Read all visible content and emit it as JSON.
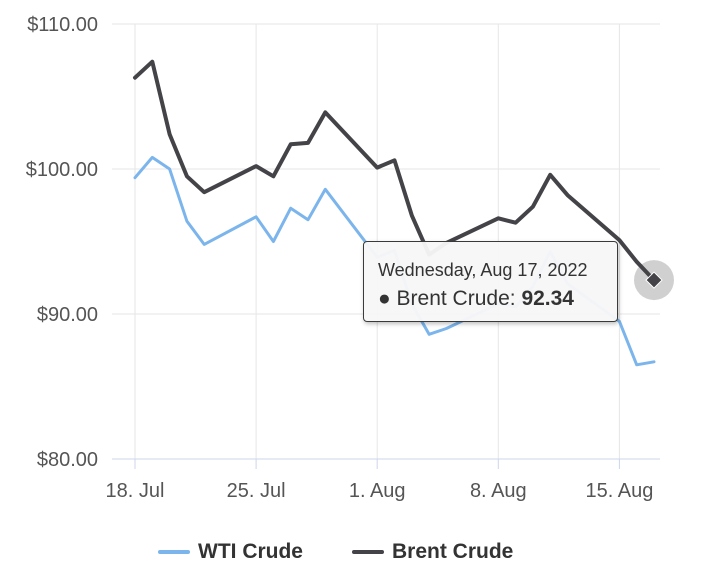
{
  "chart_data": {
    "type": "line",
    "x": [
      "2022-07-18",
      "2022-07-19",
      "2022-07-20",
      "2022-07-21",
      "2022-07-22",
      "2022-07-25",
      "2022-07-26",
      "2022-07-27",
      "2022-07-28",
      "2022-07-29",
      "2022-08-01",
      "2022-08-02",
      "2022-08-03",
      "2022-08-04",
      "2022-08-05",
      "2022-08-08",
      "2022-08-09",
      "2022-08-10",
      "2022-08-11",
      "2022-08-12",
      "2022-08-15",
      "2022-08-16",
      "2022-08-17"
    ],
    "series": [
      {
        "name": "WTI Crude",
        "color": "#7cb5ec",
        "values": [
          99.4,
          100.8,
          100.0,
          96.4,
          94.8,
          96.7,
          95.0,
          97.3,
          96.5,
          98.6,
          93.9,
          94.4,
          90.7,
          88.6,
          89.0,
          90.7,
          90.5,
          91.9,
          94.3,
          92.1,
          89.5,
          86.5,
          86.7
        ]
      },
      {
        "name": "Brent Crude",
        "color": "#434348",
        "values": [
          106.3,
          107.4,
          102.4,
          99.5,
          98.4,
          100.2,
          99.5,
          101.7,
          101.8,
          103.9,
          100.1,
          100.6,
          96.8,
          94.1,
          94.9,
          96.6,
          96.3,
          97.4,
          99.6,
          98.2,
          95.1,
          93.6,
          92.34
        ]
      }
    ],
    "y_ticks": [
      "$110.00",
      "$100.00",
      "$90.00",
      "$80.00"
    ],
    "x_ticks": [
      "18. Jul",
      "25. Jul",
      "1. Aug",
      "8. Aug",
      "15. Aug"
    ],
    "ylim": [
      80,
      110
    ],
    "grid": true,
    "legend_position": "bottom-center",
    "tooltip": {
      "date": "Wednesday, Aug 17, 2022",
      "bullet": "●",
      "series_label": "Brent Crude:",
      "value": "92.34"
    }
  }
}
